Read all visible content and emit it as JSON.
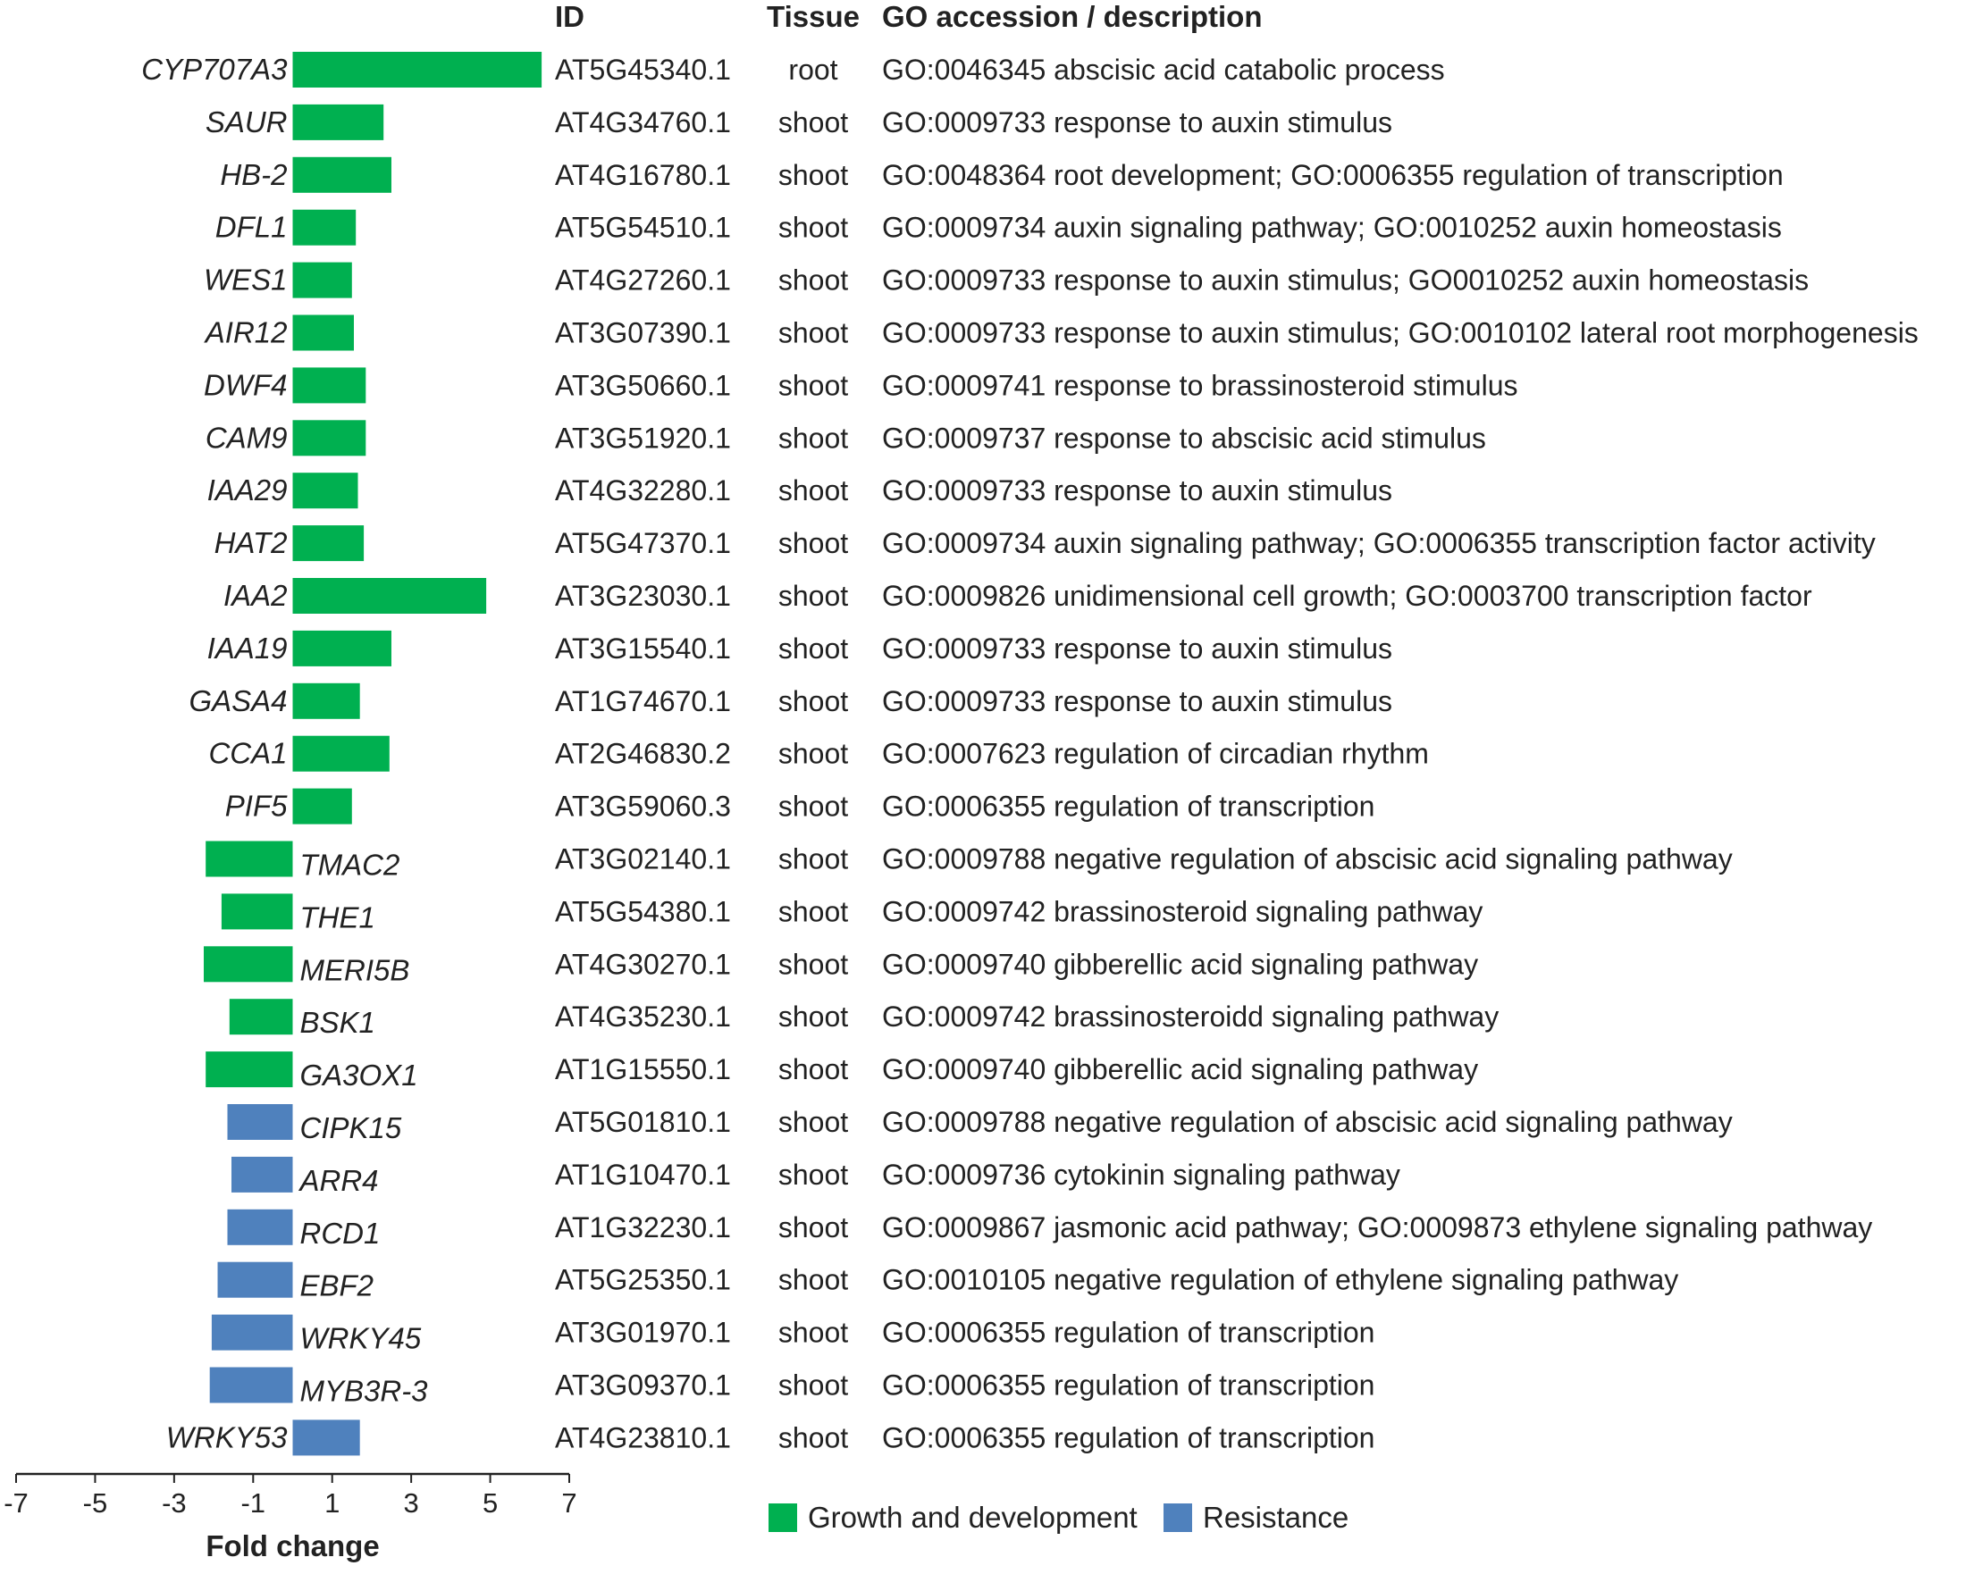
{
  "headers": {
    "id": "ID",
    "tissue": "Tissue",
    "go": "GO accession / description"
  },
  "colors": {
    "growth": "#00b050",
    "resistance": "#4f81bd",
    "text": "#222222"
  },
  "chart_data": {
    "type": "bar",
    "orientation": "horizontal",
    "xlabel": "Fold change",
    "xlim": [
      -7,
      7
    ],
    "xticks": [
      -7,
      -5,
      -3,
      -1,
      1,
      3,
      5,
      7
    ],
    "legend": [
      {
        "key": "growth",
        "label": "Growth and development"
      },
      {
        "key": "resistance",
        "label": "Resistance"
      }
    ],
    "legend_position": "bottom-right",
    "rows": [
      {
        "gene": "CYP707A3",
        "value": 6.3,
        "group": "growth",
        "id": "AT5G45340.1",
        "tissue": "root",
        "go": "GO:0046345 abscisic acid catabolic process"
      },
      {
        "gene": "SAUR",
        "value": 2.3,
        "group": "growth",
        "id": "AT4G34760.1",
        "tissue": "shoot",
        "go": "GO:0009733 response to auxin stimulus"
      },
      {
        "gene": "HB-2",
        "value": 2.5,
        "group": "growth",
        "id": "AT4G16780.1",
        "tissue": "shoot",
        "go": "GO:0048364 root development; GO:0006355 regulation of transcription"
      },
      {
        "gene": "DFL1",
        "value": 1.6,
        "group": "growth",
        "id": "AT5G54510.1",
        "tissue": "shoot",
        "go": "GO:0009734 auxin signaling pathway; GO:0010252 auxin homeostasis"
      },
      {
        "gene": "WES1",
        "value": 1.5,
        "group": "growth",
        "id": "AT4G27260.1",
        "tissue": "shoot",
        "go": "GO:0009733 response to auxin stimulus; GO0010252 auxin homeostasis"
      },
      {
        "gene": "AIR12",
        "value": 1.55,
        "group": "growth",
        "id": "AT3G07390.1",
        "tissue": "shoot",
        "go": "GO:0009733 response to auxin stimulus; GO:0010102 lateral root morphogenesis"
      },
      {
        "gene": "DWF4",
        "value": 1.85,
        "group": "growth",
        "id": "AT3G50660.1",
        "tissue": "shoot",
        "go": "GO:0009741 response to brassinosteroid stimulus"
      },
      {
        "gene": "CAM9",
        "value": 1.85,
        "group": "growth",
        "id": "AT3G51920.1",
        "tissue": "shoot",
        "go": "GO:0009737 response to abscisic acid stimulus"
      },
      {
        "gene": "IAA29",
        "value": 1.65,
        "group": "growth",
        "id": "AT4G32280.1",
        "tissue": "shoot",
        "go": "GO:0009733 response to auxin stimulus"
      },
      {
        "gene": "HAT2",
        "value": 1.8,
        "group": "growth",
        "id": "AT5G47370.1",
        "tissue": "shoot",
        "go": "GO:0009734 auxin signaling pathway; GO:0006355 transcription factor activity"
      },
      {
        "gene": "IAA2",
        "value": 4.9,
        "group": "growth",
        "id": "AT3G23030.1",
        "tissue": "shoot",
        "go": "GO:0009826 unidimensional cell growth; GO:0003700 transcription factor"
      },
      {
        "gene": "IAA19",
        "value": 2.5,
        "group": "growth",
        "id": "AT3G15540.1",
        "tissue": "shoot",
        "go": "GO:0009733 response to auxin stimulus"
      },
      {
        "gene": "GASA4",
        "value": 1.7,
        "group": "growth",
        "id": "AT1G74670.1",
        "tissue": "shoot",
        "go": "GO:0009733 response to auxin stimulus"
      },
      {
        "gene": "CCA1",
        "value": 2.45,
        "group": "growth",
        "id": "AT2G46830.2",
        "tissue": "shoot",
        "go": "GO:0007623 regulation of circadian rhythm"
      },
      {
        "gene": "PIF5",
        "value": 1.5,
        "group": "growth",
        "id": "AT3G59060.3",
        "tissue": "shoot",
        "go": "GO:0006355 regulation of transcription"
      },
      {
        "gene": "TMAC2",
        "value": -2.2,
        "group": "growth",
        "id": "AT3G02140.1",
        "tissue": "shoot",
        "go": "GO:0009788 negative regulation of abscisic acid signaling pathway"
      },
      {
        "gene": "THE1",
        "value": -1.8,
        "group": "growth",
        "id": "AT5G54380.1",
        "tissue": "shoot",
        "go": "GO:0009742 brassinosteroid signaling pathway"
      },
      {
        "gene": "MERI5B",
        "value": -2.25,
        "group": "growth",
        "id": "AT4G30270.1",
        "tissue": "shoot",
        "go": "GO:0009740 gibberellic acid signaling pathway"
      },
      {
        "gene": "BSK1",
        "value": -1.6,
        "group": "growth",
        "id": "AT4G35230.1",
        "tissue": "shoot",
        "go": "GO:0009742 brassinosteroidd signaling pathway"
      },
      {
        "gene": "GA3OX1",
        "value": -2.2,
        "group": "growth",
        "id": "AT1G15550.1",
        "tissue": "shoot",
        "go": "GO:0009740 gibberellic acid signaling pathway"
      },
      {
        "gene": "CIPK15",
        "value": -1.65,
        "group": "resistance",
        "id": "AT5G01810.1",
        "tissue": "shoot",
        "go": "GO:0009788 negative regulation of abscisic acid signaling pathway"
      },
      {
        "gene": "ARR4",
        "value": -1.55,
        "group": "resistance",
        "id": "AT1G10470.1",
        "tissue": "shoot",
        "go": "GO:0009736 cytokinin signaling pathway"
      },
      {
        "gene": "RCD1",
        "value": -1.65,
        "group": "resistance",
        "id": "AT1G32230.1",
        "tissue": "shoot",
        "go": "GO:0009867 jasmonic acid pathway; GO:0009873 ethylene signaling pathway"
      },
      {
        "gene": "EBF2",
        "value": -1.9,
        "group": "resistance",
        "id": "AT5G25350.1",
        "tissue": "shoot",
        "go": "GO:0010105 negative regulation of ethylene signaling pathway"
      },
      {
        "gene": "WRKY45",
        "value": -2.05,
        "group": "resistance",
        "id": "AT3G01970.1",
        "tissue": "shoot",
        "go": "GO:0006355 regulation of transcription"
      },
      {
        "gene": "MYB3R-3",
        "value": -2.1,
        "group": "resistance",
        "id": "AT3G09370.1",
        "tissue": "shoot",
        "go": "GO:0006355 regulation of transcription"
      },
      {
        "gene": "WRKY53",
        "value": 1.7,
        "group": "resistance",
        "id": "AT4G23810.1",
        "tissue": "shoot",
        "go": "GO:0006355 regulation of transcription"
      }
    ]
  }
}
